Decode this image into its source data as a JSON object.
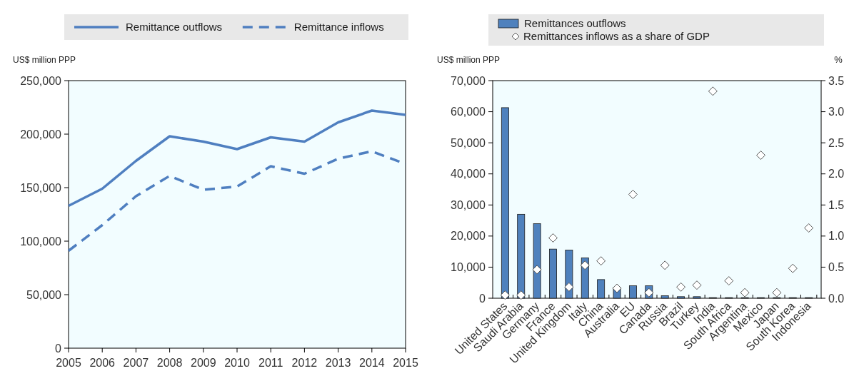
{
  "chart_data": [
    {
      "type": "line",
      "ylabel": "US$ million PPP",
      "x": [
        2005,
        2006,
        2007,
        2008,
        2009,
        2010,
        2011,
        2012,
        2013,
        2014,
        2015
      ],
      "xlim": [
        2005,
        2015
      ],
      "xticks": [
        2005,
        2006,
        2007,
        2008,
        2009,
        2010,
        2011,
        2012,
        2013,
        2014,
        2015
      ],
      "ylim": [
        0,
        250000
      ],
      "yticks": [
        0,
        {
          "value": 50000,
          "label": "50,000"
        },
        {
          "value": 100000,
          "label": "100,000"
        },
        {
          "value": 150000,
          "label": "150,000"
        },
        {
          "value": 200000,
          "label": "200,000"
        },
        {
          "value": 250000,
          "label": "250,000"
        }
      ],
      "legend": "top",
      "series": [
        {
          "name": "Remittance outflows",
          "color": "#4f7fc0",
          "line_style": "solid",
          "values": [
            133000,
            149000,
            175000,
            198000,
            193000,
            186000,
            197000,
            193000,
            211000,
            222000,
            218000
          ]
        },
        {
          "name": "Remittance inflows",
          "color": "#4f7fc0",
          "line_style": "dashed",
          "values": [
            91000,
            115000,
            142000,
            161000,
            148000,
            151000,
            170000,
            163000,
            177000,
            184000,
            172000
          ]
        }
      ]
    },
    {
      "type": "bar",
      "ylabel": "US$ million PPP",
      "y2label": "%",
      "categories": [
        "United States",
        "Saudi Arabia",
        "Germany",
        "France",
        "United Kingdom",
        "Italy",
        "China",
        "Australia",
        "EU",
        "Canada",
        "Russia",
        "Brazil",
        "Turkey",
        "India",
        "South Africa",
        "Argentina",
        "Mexico",
        "Japan",
        "South Korea",
        "Indonesia"
      ],
      "ylim": [
        0,
        70000
      ],
      "yticks": [
        0,
        {
          "value": 10000,
          "label": "10,000"
        },
        {
          "value": 20000,
          "label": "20,000"
        },
        {
          "value": 30000,
          "label": "30,000"
        },
        {
          "value": 40000,
          "label": "40,000"
        },
        {
          "value": 50000,
          "label": "50,000"
        },
        {
          "value": 60000,
          "label": "60,000"
        },
        {
          "value": 70000,
          "label": "70,000"
        }
      ],
      "y2lim": [
        0,
        3.5
      ],
      "y2ticks": [
        {
          "value": 0,
          "label": "0.0"
        },
        0.5,
        {
          "value": 1,
          "label": "1.0"
        },
        1.5,
        {
          "value": 2,
          "label": "2.0"
        },
        2.5,
        {
          "value": 3,
          "label": "3.0"
        },
        3.5
      ],
      "legend": "top",
      "series": [
        {
          "name": "Remittances outflows",
          "color": "#4f81bd",
          "values": [
            61300,
            27000,
            24000,
            15800,
            15500,
            13000,
            6000,
            3500,
            4000,
            4000,
            800,
            500,
            500,
            200,
            200,
            200,
            200,
            200,
            200,
            200
          ]
        },
        {
          "name": "Remittances inflows as a share of GDP",
          "type": "scatter",
          "axis": "y2",
          "marker": "diamond",
          "color": "#ffffff",
          "values": [
            0.05,
            0.05,
            0.46,
            0.97,
            0.18,
            0.53,
            0.6,
            0.16,
            1.67,
            0.09,
            0.53,
            0.18,
            0.21,
            3.33,
            0.28,
            0.09,
            2.3,
            0.09,
            0.48,
            1.13
          ]
        }
      ]
    }
  ]
}
